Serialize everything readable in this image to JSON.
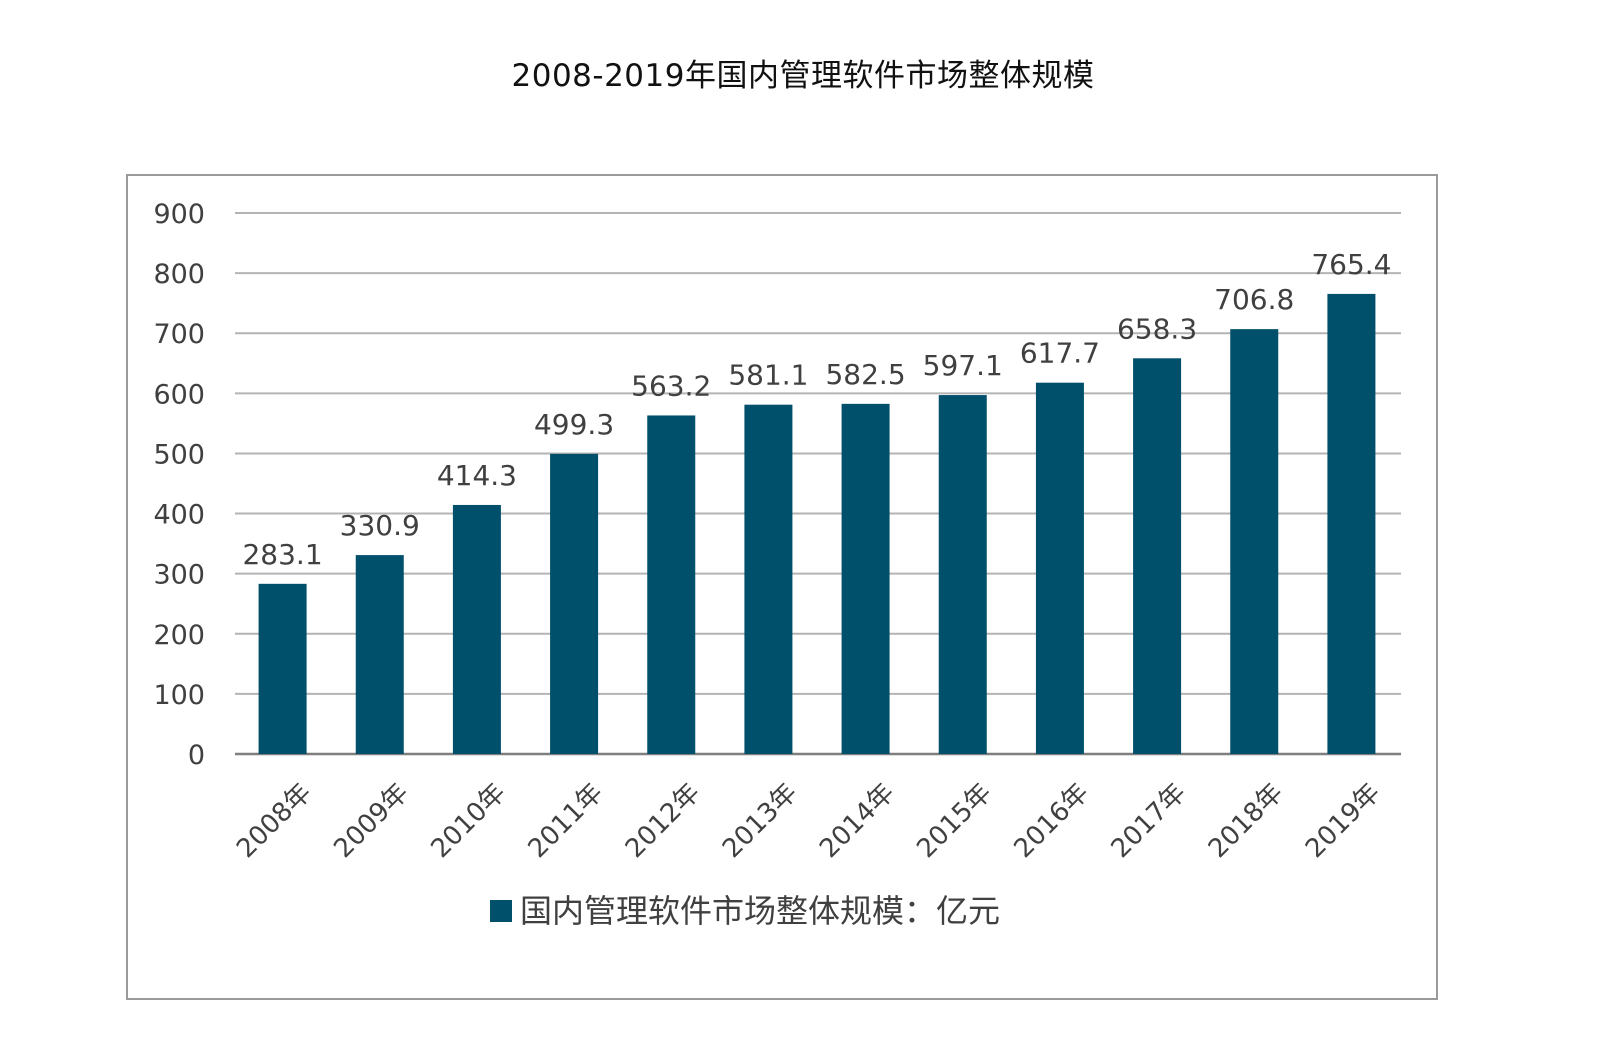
{
  "title": "2008-2019年国内管理软件市场整体规模",
  "chart_data": {
    "type": "bar",
    "title": "2008-2019年国内管理软件市场整体规模",
    "categories": [
      "2008年",
      "2009年",
      "2010年",
      "2011年",
      "2012年",
      "2013年",
      "2014年",
      "2015年",
      "2016年",
      "2017年",
      "2018年",
      "2019年"
    ],
    "series": [
      {
        "name": "国内管理软件市场整体规模：亿元",
        "values": [
          283.1,
          330.9,
          414.3,
          499.3,
          563.2,
          581.1,
          582.5,
          597.1,
          617.7,
          658.3,
          706.8,
          765.4
        ],
        "labels": [
          "283.1",
          "330.9",
          "414.3",
          "499.3",
          "563.2",
          "581.1",
          "582.5",
          "597.1",
          "617.7",
          "658.3",
          "706.8",
          "765.4"
        ],
        "color": "#004f6b"
      }
    ],
    "ylim": [
      0,
      900
    ],
    "yticks": [
      0,
      100,
      200,
      300,
      400,
      500,
      600,
      700,
      800,
      900
    ],
    "grid": true,
    "legend": "bottom"
  }
}
